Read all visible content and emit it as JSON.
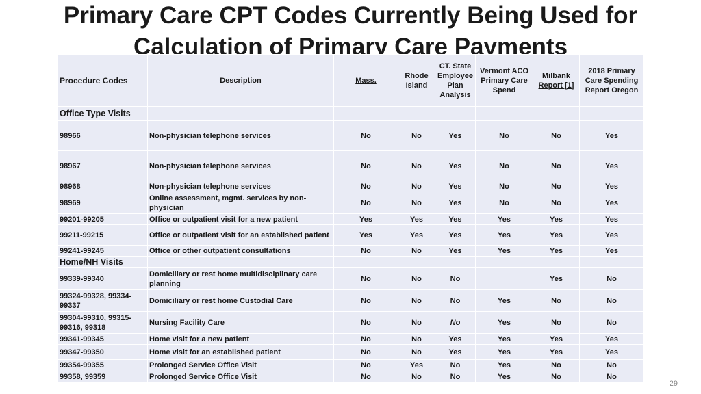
{
  "title": "Primary Care CPT Codes Currently Being Used for Calculation of Primary Care Payments",
  "headers": {
    "procedure": "Procedure Codes",
    "description": "Description",
    "mass": "Mass.",
    "ri": "Rhode Island",
    "ct": "CT. State Employee Plan Analysis",
    "vt": "Vermont ACO Primary Care Spend",
    "milbank": "Milbank Report [1]",
    "oregon": "2018 Primary Care Spending Report Oregon"
  },
  "sections": {
    "office": "Office Type Visits",
    "home": "Home/NH Visits"
  },
  "colors": {
    "yes": "#16a016",
    "no": "#e11111",
    "cell_bg": "#e9ebf5",
    "link": "#2f6fd0"
  },
  "rows": [
    {
      "code": "98966",
      "desc": "Non-physician telephone services",
      "v": [
        "No",
        "No",
        "Yes",
        "No",
        "No",
        "Yes"
      ]
    },
    {
      "code": "98967",
      "desc": "Non-physician telephone services",
      "v": [
        "No",
        "No",
        "Yes",
        "No",
        "No",
        "Yes"
      ]
    },
    {
      "code": "98968",
      "desc": "Non-physician telephone services",
      "v": [
        "No",
        "No",
        "Yes",
        "No",
        "No",
        "Yes"
      ]
    },
    {
      "code": "98969",
      "desc": "Online assessment, mgmt. services by non-physician",
      "v": [
        "No",
        "No",
        "Yes",
        "No",
        "No",
        "Yes"
      ]
    },
    {
      "code": "99201-99205",
      "desc": "Office or outpatient visit for a new patient",
      "v": [
        "Yes",
        "Yes",
        "Yes",
        "Yes",
        "Yes",
        "Yes"
      ]
    },
    {
      "code": "99211-99215",
      "desc": "Office or outpatient visit for an established patient",
      "v": [
        "Yes",
        "Yes",
        "Yes",
        "Yes",
        "Yes",
        "Yes"
      ]
    },
    {
      "code": "99241-99245",
      "desc": "Office or other outpatient consultations",
      "v": [
        "No",
        "No",
        "Yes",
        "Yes",
        "Yes",
        "Yes"
      ]
    },
    {
      "code": "99339-99340",
      "desc": "Domiciliary or rest home multidisciplinary care planning",
      "v": [
        "No",
        "No",
        "No",
        "",
        "Yes",
        "No"
      ]
    },
    {
      "code": "99324-99328, 99334-99337",
      "desc": "Domiciliary or rest home Custodial Care",
      "v": [
        "No",
        "No",
        "No",
        "Yes",
        "No",
        "No"
      ]
    },
    {
      "code": "99304-99310, 99315-99316, 99318",
      "desc": "Nursing Facility Care",
      "v": [
        "No",
        "No",
        "No",
        "Yes",
        "No",
        "No"
      ]
    },
    {
      "code": "99341-99345",
      "desc": "Home visit for a new patient",
      "v": [
        "No",
        "No",
        "Yes",
        "Yes",
        "Yes",
        "Yes"
      ]
    },
    {
      "code": "99347-99350",
      "desc": "Home visit for an established patient",
      "v": [
        "No",
        "No",
        "Yes",
        "Yes",
        "Yes",
        "Yes"
      ]
    },
    {
      "code": "99354-99355",
      "desc": "Prolonged Service Office Visit",
      "v": [
        "No",
        "Yes",
        "No",
        "Yes",
        "No",
        "No"
      ]
    },
    {
      "code": "99358, 99359",
      "desc": "Prolonged Service Office Visit",
      "v": [
        "No",
        "No",
        "No",
        "Yes",
        "No",
        "No"
      ]
    }
  ],
  "page_number": "29"
}
